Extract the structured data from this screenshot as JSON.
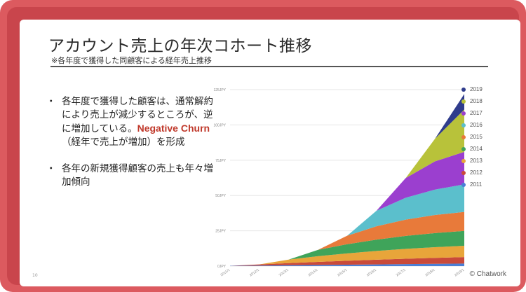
{
  "slide": {
    "title": "アカウント売上の年次コホート推移",
    "subtitle": "※各年度で獲得した同顧客による経年売上推移",
    "bullet_mark": "・",
    "bullet1_pre": "各年度で獲得した顧客は、通常解約により売上が減少するところが、逆に増加している。",
    "bullet1_highlight": "Negative Churn",
    "bullet1_post": "（経年で売上が増加）を形成",
    "bullet2": "各年の新規獲得顧客の売上も年々増加傾向",
    "page_number": "10",
    "copyright": "© Chatwork"
  },
  "chart_data": {
    "type": "area",
    "stacked": true,
    "ylim": [
      0,
      125
    ],
    "y_ticks": [
      "0JPY",
      "25JPY",
      "50JPY",
      "75JPY",
      "100JPY",
      "125JPY"
    ],
    "legend_position": "right",
    "x": [
      "2011/1",
      "2012/1",
      "2013/1",
      "2014/1",
      "2015/1",
      "2016/1",
      "2017/1",
      "2018/1",
      "2019/1"
    ],
    "series": [
      {
        "name": "2011",
        "color": "#4a7fd6",
        "values": [
          0.2,
          0.4,
          0.6,
          0.8,
          1.0,
          1.2,
          1.4,
          1.6,
          1.8
        ]
      },
      {
        "name": "2012",
        "color": "#c94a3a",
        "values": [
          0,
          0.8,
          1.5,
          2.2,
          2.8,
          3.3,
          3.8,
          4.2,
          4.6
        ]
      },
      {
        "name": "2013",
        "color": "#e8a53a",
        "values": [
          0,
          0,
          2.5,
          4.0,
          5.2,
          6.2,
          7.0,
          7.6,
          8.0
        ]
      },
      {
        "name": "2014",
        "color": "#3fa45a",
        "values": [
          0,
          0,
          0,
          4.5,
          6.5,
          8.0,
          9.2,
          10.0,
          10.5
        ]
      },
      {
        "name": "2015",
        "color": "#e87a3a",
        "values": [
          0,
          0,
          0,
          0,
          6.0,
          9.5,
          11.5,
          12.8,
          13.5
        ]
      },
      {
        "name": "2016",
        "color": "#5bbfcc",
        "values": [
          0,
          0,
          0,
          0,
          0,
          11.0,
          15.5,
          18.0,
          19.5
        ]
      },
      {
        "name": "2017",
        "color": "#9b3fcf",
        "values": [
          0,
          0,
          0,
          0,
          0,
          0,
          14.0,
          20.0,
          23.0
        ]
      },
      {
        "name": "2018",
        "color": "#b8c23a",
        "values": [
          0,
          0,
          0,
          0,
          0,
          0,
          0,
          16.0,
          30.0
        ]
      },
      {
        "name": "2019",
        "color": "#2f3c8c",
        "values": [
          0,
          0,
          0,
          0,
          0,
          0,
          0,
          0,
          11.0
        ]
      }
    ]
  }
}
